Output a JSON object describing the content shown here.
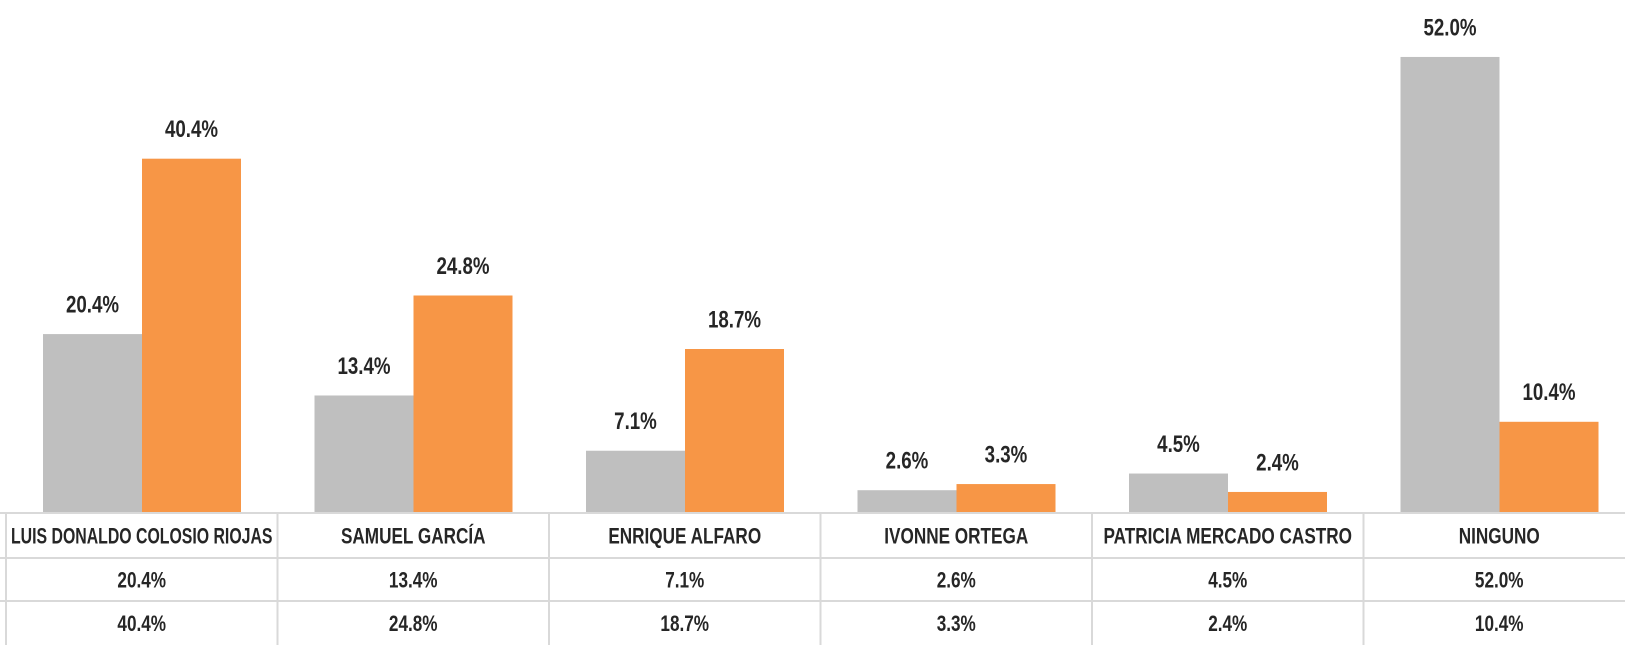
{
  "chart_data": {
    "type": "bar",
    "categories": [
      "LUIS DONALDO COLOSIO RIOJAS",
      "SAMUEL GARCÍA",
      "ENRIQUE ALFARO",
      "IVONNE ORTEGA",
      "PATRICIA MERCADO CASTRO",
      "NINGUNO"
    ],
    "series": [
      {
        "color": "#bfbfbf",
        "values": [
          20.4,
          13.4,
          7.1,
          2.6,
          4.5,
          52.0
        ],
        "value_labels": [
          "20.4%",
          "13.4%",
          "7.1%",
          "2.6%",
          "4.5%",
          "52.0%"
        ]
      },
      {
        "color": "#f79646",
        "values": [
          40.4,
          24.8,
          18.7,
          3.3,
          2.4,
          10.4
        ],
        "value_labels": [
          "40.4%",
          "24.8%",
          "18.7%",
          "3.3%",
          "2.4%",
          "10.4%"
        ]
      }
    ]
  }
}
